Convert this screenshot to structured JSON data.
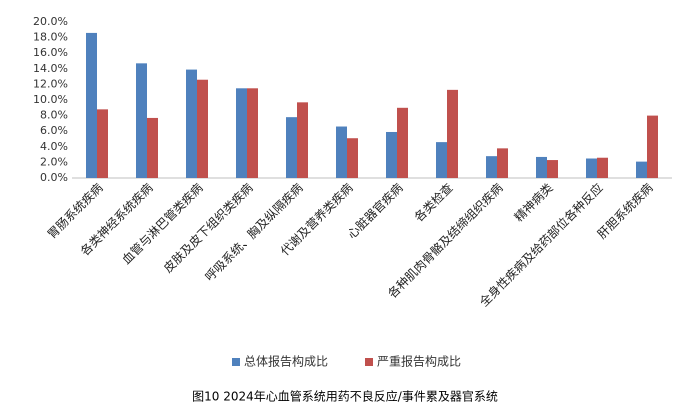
{
  "chart_data": {
    "type": "bar",
    "caption": "图10  2024年心血管系统用药不良反应/事件累及器官系统",
    "categories": [
      "胃肠系统疾病",
      "各类神经系统疾病",
      "血管与淋巴管类疾病",
      "皮肤及皮下组织类疾病",
      "呼吸系统、胸及纵隔疾病",
      "代谢及营养类疾病",
      "心脏器官疾病",
      "各类检查",
      "各种肌肉骨骼及结缔组织疾病",
      "精神病类",
      "全身性疾病及给药部位各种反应",
      "肝胆系统疾病"
    ],
    "series": [
      {
        "name": "总体报告构成比",
        "color": "#4f81bd",
        "values": [
          18.6,
          14.7,
          13.9,
          11.5,
          7.8,
          6.6,
          5.9,
          4.6,
          2.8,
          2.7,
          2.5,
          2.1
        ]
      },
      {
        "name": "严重报告构成比",
        "color": "#c0504d",
        "values": [
          8.8,
          7.7,
          12.6,
          11.5,
          9.7,
          5.1,
          9.0,
          11.3,
          3.8,
          2.3,
          2.6,
          8.0
        ]
      }
    ],
    "ylim": [
      0,
      20
    ],
    "yticks": [
      {
        "value": 0,
        "label": "0.0%"
      },
      {
        "value": 2,
        "label": "2.0%"
      },
      {
        "value": 4,
        "label": "4.0%"
      },
      {
        "value": 6,
        "label": "6.0%"
      },
      {
        "value": 8,
        "label": "8.0%"
      },
      {
        "value": 10,
        "label": "10.0%"
      },
      {
        "value": 12,
        "label": "12.0%"
      },
      {
        "value": 14,
        "label": "14.0%"
      },
      {
        "value": 16,
        "label": "16.0%"
      },
      {
        "value": 18,
        "label": "18.0%"
      },
      {
        "value": 20,
        "label": "20.0%"
      }
    ],
    "legend": "bottom"
  }
}
